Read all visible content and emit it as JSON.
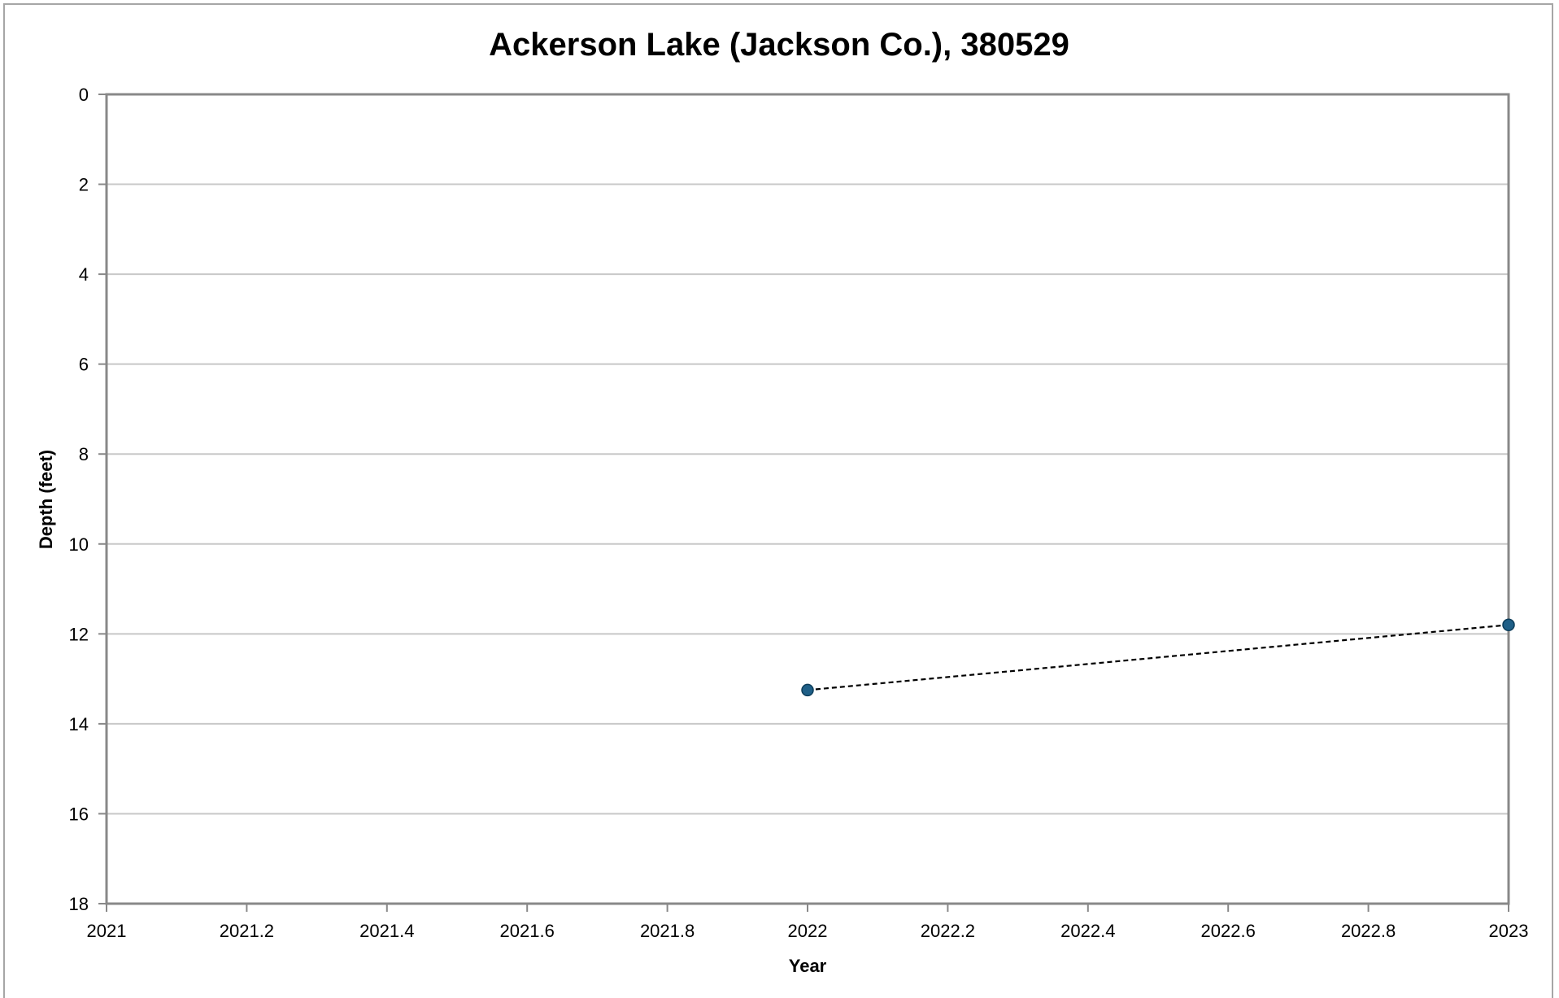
{
  "chart_data": {
    "type": "scatter",
    "title": "Ackerson Lake (Jackson Co.), 380529",
    "xlabel": "Year",
    "ylabel": "Depth (feet)",
    "xlim": [
      2021,
      2023
    ],
    "ylim": [
      0,
      18
    ],
    "y_inverted": true,
    "x_ticks": [
      "2021",
      "2021.2",
      "2021.4",
      "2021.6",
      "2021.8",
      "2022",
      "2022.2",
      "2022.4",
      "2022.6",
      "2022.8",
      "2023"
    ],
    "y_ticks": [
      "0",
      "2",
      "4",
      "6",
      "8",
      "10",
      "12",
      "14",
      "16",
      "18"
    ],
    "grid": "horizontal",
    "legend": "none",
    "series": [
      {
        "points": [
          {
            "x": 2022,
            "y": 13.25
          },
          {
            "x": 2023,
            "y": 11.8
          }
        ],
        "marker_color": "#1f5f87",
        "trendline": "dashed-black"
      }
    ]
  }
}
